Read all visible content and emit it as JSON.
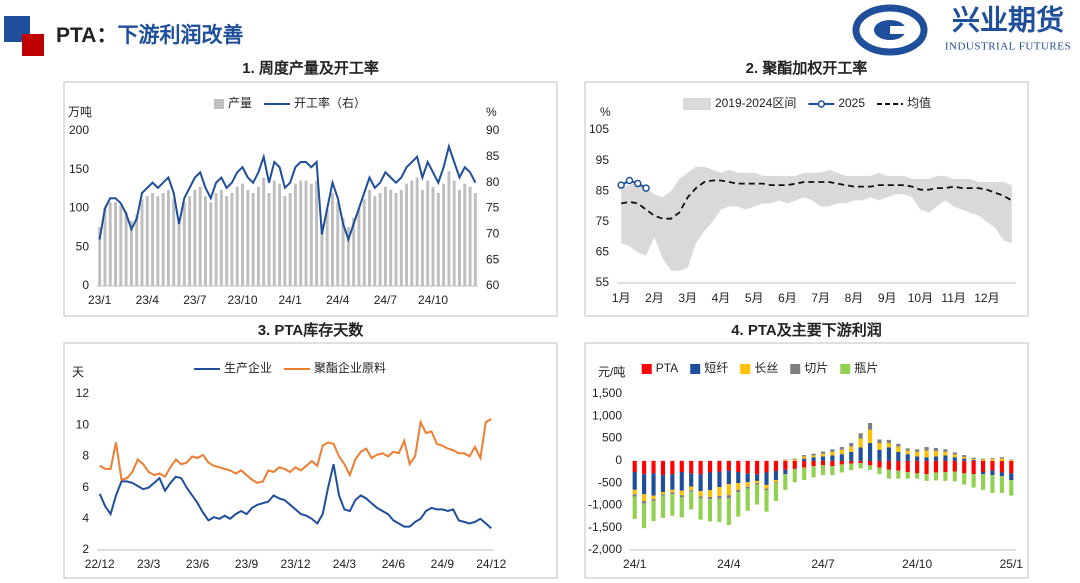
{
  "header": {
    "prefix": "PTA：",
    "title": "下游利润改善"
  },
  "logo": {
    "name": "兴业期货",
    "subtitle": "INDUSTRIAL FUTURES"
  },
  "chart_data": [
    {
      "type": "combo",
      "title": "1. 周度产量及开工率",
      "y_label": "万吨",
      "y2_label": "%",
      "categories": [
        "23/1",
        null,
        null,
        null,
        null,
        null,
        null,
        null,
        null,
        "23/4",
        null,
        null,
        null,
        null,
        null,
        null,
        null,
        null,
        "23/7",
        null,
        null,
        null,
        null,
        null,
        null,
        null,
        null,
        "23/10",
        null,
        null,
        null,
        null,
        null,
        null,
        null,
        null,
        "24/1",
        null,
        null,
        null,
        null,
        null,
        null,
        null,
        null,
        "24/4",
        null,
        null,
        null,
        null,
        null,
        null,
        null,
        null,
        "24/7",
        null,
        null,
        null,
        null,
        null,
        null,
        null,
        null,
        "24/10",
        null,
        null,
        null,
        null,
        null,
        null,
        null,
        null
      ],
      "series": [
        {
          "name": "产量",
          "type": "bar",
          "color": "#bfbfbf",
          "values": [
            76,
            100,
            108,
            108,
            104,
            96,
            84,
            92,
            112,
            116,
            120,
            116,
            120,
            124,
            112,
            88,
            108,
            116,
            124,
            128,
            116,
            108,
            120,
            124,
            116,
            120,
            128,
            132,
            124,
            120,
            128,
            140,
            120,
            136,
            132,
            116,
            120,
            132,
            136,
            136,
            132,
            136,
            80,
            100,
            120,
            108,
            88,
            76,
            88,
            100,
            112,
            124,
            116,
            120,
            128,
            124,
            120,
            124,
            132,
            136,
            140,
            124,
            136,
            128,
            120,
            132,
            148,
            136,
            124,
            132,
            128,
            120
          ]
        },
        {
          "name": "开工率（右）",
          "type": "line",
          "axis": "y2",
          "color": "#1f4e9a",
          "values": [
            69,
            75,
            77,
            77,
            76,
            74,
            71,
            73,
            78,
            79,
            80,
            79,
            80,
            81,
            78,
            72,
            77,
            79,
            81,
            82,
            79,
            77,
            80,
            81,
            79,
            80,
            82,
            83,
            81,
            80,
            82,
            85,
            80,
            84,
            83,
            79,
            80,
            83,
            84,
            84,
            83,
            84,
            70,
            75,
            80,
            77,
            72,
            69,
            72,
            75,
            78,
            81,
            79,
            80,
            82,
            81,
            80,
            81,
            83,
            84,
            85,
            81,
            84,
            82,
            80,
            83,
            87,
            84,
            81,
            83,
            82,
            80
          ]
        }
      ],
      "ylim": [
        0,
        200
      ],
      "yticks": [
        0,
        50,
        100,
        150,
        200
      ],
      "y2lim": [
        60,
        90
      ],
      "y2ticks": [
        60,
        65,
        70,
        75,
        80,
        85,
        90
      ],
      "grid": false
    },
    {
      "type": "band",
      "title": "2. 聚酯加权开工率",
      "y_label": "%",
      "categories": [
        "1月",
        null,
        null,
        null,
        "2月",
        null,
        null,
        null,
        "3月",
        null,
        null,
        null,
        "4月",
        null,
        null,
        null,
        "5月",
        null,
        null,
        null,
        "6月",
        null,
        null,
        null,
        "7月",
        null,
        null,
        null,
        "8月",
        null,
        null,
        null,
        "9月",
        null,
        null,
        null,
        "10月",
        null,
        null,
        null,
        "11月",
        null,
        null,
        null,
        "12月",
        null,
        null,
        null
      ],
      "series": [
        {
          "name": "2019-2024区间",
          "type": "band",
          "color": "#d9d9d9",
          "low": [
            68,
            67,
            65,
            64,
            70,
            63,
            59,
            59,
            60,
            68,
            72,
            75,
            79,
            80,
            80,
            79,
            80,
            81,
            81,
            82,
            81,
            82,
            83,
            82,
            80,
            80,
            81,
            81,
            82,
            82,
            83,
            82,
            83,
            84,
            84,
            83,
            79,
            78,
            80,
            82,
            80,
            79,
            78,
            77,
            75,
            73,
            69,
            68
          ],
          "high": [
            86,
            87,
            88,
            86,
            84,
            83,
            85,
            89,
            91,
            93,
            93,
            92,
            91,
            92,
            91,
            91,
            91,
            90,
            90,
            90,
            90,
            90,
            91,
            91,
            91,
            92,
            91,
            90,
            90,
            90,
            90,
            91,
            90,
            90,
            90,
            89,
            89,
            89,
            90,
            90,
            89,
            89,
            89,
            88,
            88,
            88,
            88,
            87
          ]
        },
        {
          "name": "2025",
          "type": "line",
          "color": "#1f4e9a",
          "marker": "circle",
          "values": [
            87,
            88.5,
            87.5,
            86,
            null,
            null,
            null,
            null,
            null,
            null,
            null,
            null,
            null,
            null,
            null,
            null,
            null,
            null,
            null,
            null,
            null,
            null,
            null,
            null,
            null,
            null,
            null,
            null,
            null,
            null,
            null,
            null,
            null,
            null,
            null,
            null,
            null,
            null,
            null,
            null,
            null,
            null,
            null,
            null,
            null,
            null,
            null,
            null
          ]
        },
        {
          "name": "均值",
          "type": "line",
          "color": "#111111",
          "dash": true,
          "values": [
            81,
            81.5,
            81,
            79,
            77,
            76,
            76,
            78,
            83,
            86,
            88,
            88.5,
            88.5,
            88,
            87.5,
            87.5,
            87.5,
            87.5,
            87,
            87,
            87,
            87.5,
            88,
            88,
            88,
            88,
            87.5,
            87,
            86.5,
            86.5,
            86.5,
            87,
            87,
            87,
            87,
            86.5,
            85.5,
            85.5,
            86,
            86,
            86.5,
            86,
            86,
            86,
            85.5,
            84.5,
            83.5,
            82
          ]
        }
      ],
      "ylim": [
        55,
        105
      ],
      "yticks": [
        55,
        65,
        75,
        85,
        95,
        105
      ],
      "grid": false
    },
    {
      "type": "line",
      "title": "3. PTA库存天数",
      "y_label": "天",
      "categories": [
        "22/12",
        null,
        null,
        null,
        null,
        null,
        null,
        null,
        null,
        "23/3",
        null,
        null,
        null,
        null,
        null,
        null,
        null,
        null,
        "23/6",
        null,
        null,
        null,
        null,
        null,
        null,
        null,
        null,
        "23/9",
        null,
        null,
        null,
        null,
        null,
        null,
        null,
        null,
        "23/12",
        null,
        null,
        null,
        null,
        null,
        null,
        null,
        null,
        "24/3",
        null,
        null,
        null,
        null,
        null,
        null,
        null,
        null,
        "24/6",
        null,
        null,
        null,
        null,
        null,
        null,
        null,
        null,
        "24/9",
        null,
        null,
        null,
        null,
        null,
        null,
        null,
        null,
        "24/12"
      ],
      "series": [
        {
          "name": "生产企业",
          "type": "line",
          "color": "#1f4e9a",
          "values": [
            5.6,
            4.8,
            4.3,
            5.5,
            6.4,
            6.4,
            6.3,
            6.1,
            5.9,
            6.0,
            6.3,
            6.6,
            5.8,
            6.3,
            6.7,
            6.6,
            6.0,
            5.5,
            5.0,
            4.4,
            3.9,
            4.1,
            4.0,
            4.2,
            4.0,
            4.3,
            4.5,
            4.3,
            4.7,
            4.9,
            5.0,
            5.1,
            5.5,
            5.3,
            5.2,
            4.9,
            4.6,
            4.3,
            4.2,
            4.0,
            3.7,
            4.3,
            6.0,
            7.5,
            5.5,
            4.6,
            4.5,
            5.2,
            5.5,
            5.3,
            5.0,
            4.7,
            4.5,
            4.3,
            3.9,
            3.7,
            3.5,
            3.5,
            3.8,
            4.0,
            4.5,
            4.7,
            4.6,
            4.6,
            4.5,
            4.6,
            3.9,
            3.8,
            3.7,
            3.8,
            4.0,
            3.7,
            3.4
          ]
        },
        {
          "name": "聚酯企业原料",
          "type": "line",
          "color": "#ed7d31",
          "values": [
            7.4,
            7.2,
            7.2,
            8.9,
            6.5,
            6.6,
            7.0,
            7.8,
            7.5,
            7.0,
            6.8,
            6.9,
            6.7,
            7.3,
            7.8,
            7.5,
            7.6,
            8.0,
            7.9,
            8.1,
            7.6,
            7.4,
            7.3,
            7.2,
            7.1,
            6.9,
            7.1,
            6.8,
            6.5,
            6.3,
            6.4,
            7.1,
            7.0,
            7.3,
            7.2,
            7.0,
            7.3,
            7.1,
            7.4,
            7.7,
            7.4,
            8.7,
            8.9,
            8.8,
            8.0,
            7.5,
            6.8,
            7.8,
            8.3,
            8.5,
            7.9,
            8.1,
            8.2,
            8.0,
            8.3,
            8.2,
            9.0,
            7.5,
            8.0,
            10.2,
            9.5,
            9.6,
            8.8,
            8.7,
            8.5,
            8.4,
            8.2,
            8.2,
            8.0,
            8.6,
            7.9,
            10.2,
            10.4
          ]
        }
      ],
      "ylim": [
        2,
        12
      ],
      "yticks": [
        2,
        4,
        6,
        8,
        10,
        12
      ],
      "grid": false
    },
    {
      "type": "bar",
      "stacked": true,
      "title": "4. PTA及主要下游利润",
      "y_label": "元/吨",
      "categories": [
        "24/1",
        null,
        null,
        null,
        null,
        null,
        null,
        null,
        null,
        null,
        "24/4",
        null,
        null,
        null,
        null,
        null,
        null,
        null,
        null,
        null,
        "24/7",
        null,
        null,
        null,
        null,
        null,
        null,
        null,
        null,
        null,
        "24/10",
        null,
        null,
        null,
        null,
        null,
        null,
        null,
        null,
        null,
        "25/1"
      ],
      "series": [
        {
          "name": "PTA",
          "type": "bar",
          "color": "#ff0000",
          "values": [
            -250,
            -300,
            -280,
            -320,
            -300,
            -250,
            -280,
            -300,
            -260,
            -240,
            -220,
            -250,
            -280,
            -300,
            -260,
            -230,
            -200,
            -180,
            -150,
            -120,
            -100,
            -120,
            -80,
            -60,
            -50,
            -100,
            -150,
            -200,
            -220,
            -250,
            -280,
            -300,
            -260,
            -250,
            -240,
            -280,
            -300,
            -250,
            -220,
            -260,
            -280
          ]
        },
        {
          "name": "短纤",
          "type": "bar",
          "color": "#1f4e9a",
          "values": [
            -400,
            -450,
            -500,
            -380,
            -350,
            -420,
            -300,
            -380,
            -400,
            -350,
            -300,
            -250,
            -200,
            -150,
            -280,
            -200,
            -100,
            0,
            50,
            80,
            100,
            120,
            150,
            200,
            300,
            400,
            250,
            300,
            200,
            150,
            100,
            80,
            100,
            120,
            80,
            50,
            20,
            -50,
            -100,
            -80,
            -150
          ]
        },
        {
          "name": "长丝",
          "type": "bar",
          "color": "#ffc000",
          "values": [
            -100,
            -150,
            -80,
            -50,
            -60,
            -100,
            -80,
            -120,
            -150,
            -200,
            -250,
            -150,
            -100,
            -50,
            -80,
            -50,
            20,
            30,
            50,
            40,
            60,
            80,
            100,
            120,
            200,
            300,
            150,
            100,
            120,
            80,
            100,
            150,
            120,
            80,
            60,
            40,
            20,
            30,
            40,
            50,
            20
          ]
        },
        {
          "name": "切片",
          "type": "bar",
          "color": "#7f7f7f",
          "values": [
            -50,
            -60,
            -40,
            -30,
            -40,
            -50,
            -30,
            -40,
            -50,
            -60,
            -70,
            -50,
            -40,
            -30,
            -40,
            -20,
            10,
            20,
            30,
            40,
            50,
            60,
            60,
            80,
            120,
            150,
            80,
            70,
            60,
            50,
            60,
            80,
            70,
            60,
            50,
            40,
            30,
            20,
            20,
            30,
            10
          ]
        },
        {
          "name": "瓶片",
          "type": "bar",
          "color": "#92d050",
          "values": [
            -500,
            -550,
            -450,
            -500,
            -480,
            -450,
            -400,
            -480,
            -500,
            -520,
            -600,
            -550,
            -500,
            -450,
            -480,
            -400,
            -350,
            -300,
            -280,
            -250,
            -220,
            -200,
            -180,
            -150,
            -120,
            -100,
            -150,
            -200,
            -180,
            -150,
            -120,
            -150,
            -180,
            -200,
            -220,
            -250,
            -300,
            -350,
            -400,
            -380,
            -350
          ]
        }
      ],
      "ylim": [
        -2000,
        1500
      ],
      "yticks": [
        {
          "value": 1500,
          "label": "1,500"
        },
        {
          "value": 1000,
          "label": "1,000"
        },
        500,
        0,
        -500,
        {
          "value": -1000,
          "label": "-1,000"
        },
        {
          "value": -1500,
          "label": "-1,500"
        },
        {
          "value": -2000,
          "label": "-2,000"
        }
      ],
      "grid": false
    }
  ]
}
